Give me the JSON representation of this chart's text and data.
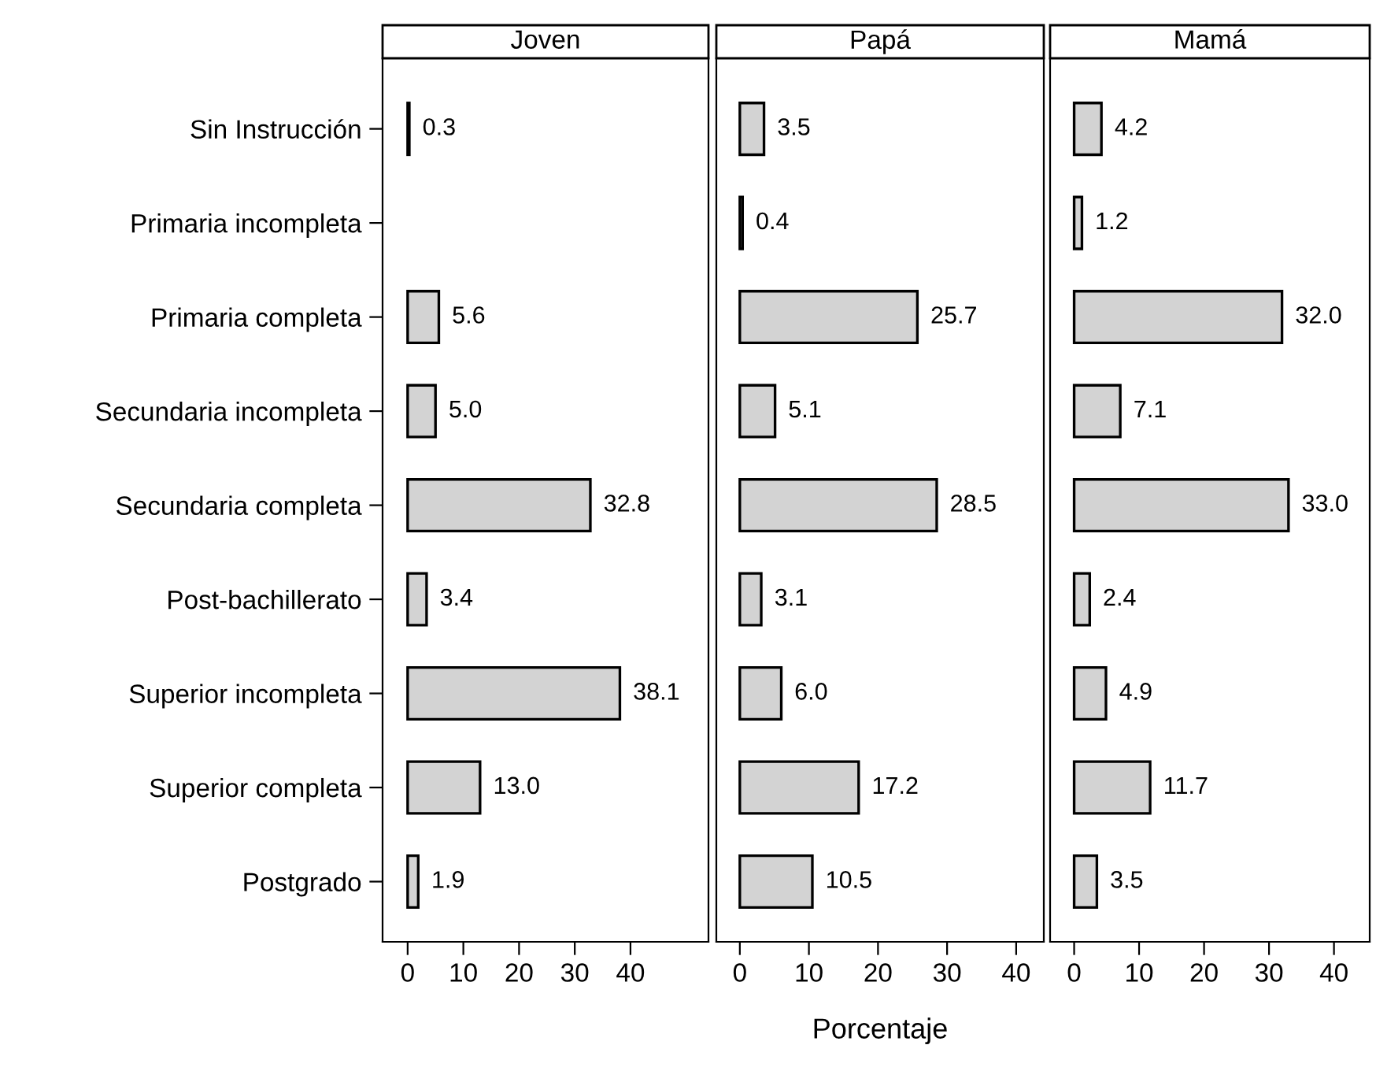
{
  "chart_data": [
    {
      "type": "bar",
      "orientation": "horizontal",
      "title": "Joven",
      "categories": [
        "Sin Instrucción",
        "Primaria incompleta",
        "Primaria completa",
        "Secundaria incompleta",
        "Secundaria completa",
        "Post-bachillerato",
        "Superior incompleta",
        "Superior completa",
        "Postgrado"
      ],
      "values": [
        0.3,
        null,
        5.6,
        5.0,
        32.8,
        3.4,
        38.1,
        13.0,
        1.9
      ],
      "value_labels": [
        "0.3",
        null,
        "5.6",
        "5.0",
        "32.8",
        "3.4",
        "38.1",
        "13.0",
        "1.9"
      ],
      "color": "#d3d3d3",
      "xlim": [
        -4.5,
        54
      ],
      "xticks": [
        0,
        10,
        20,
        30,
        40
      ],
      "grid": false
    },
    {
      "type": "bar",
      "orientation": "horizontal",
      "title": "Papá",
      "xlabel": "Porcentaje",
      "values": [
        3.5,
        0.4,
        25.7,
        5.1,
        28.5,
        3.1,
        6.0,
        17.2,
        10.5
      ],
      "value_labels": [
        "3.5",
        "0.4",
        "25.7",
        "5.1",
        "28.5",
        "3.1",
        "6.0",
        "17.2",
        "10.5"
      ],
      "color": "#d3d3d3",
      "xlim": [
        -3.4,
        44
      ],
      "xticks": [
        0,
        10,
        20,
        30,
        40
      ],
      "grid": false,
      "tick_labels": "x"
    },
    {
      "type": "bar",
      "orientation": "horizontal",
      "title": "Mamá",
      "values": [
        4.2,
        1.2,
        32.0,
        7.1,
        33.0,
        2.4,
        4.9,
        11.7,
        3.5
      ],
      "value_labels": [
        "4.2",
        "1.2",
        "32.0",
        "7.1",
        "33.0",
        "2.4",
        "4.9",
        "11.7",
        "3.5"
      ],
      "color": "#d3d3d3",
      "xlim": [
        -3.7,
        45.5
      ],
      "xticks": [
        0,
        10,
        20,
        30,
        40
      ],
      "grid": false,
      "tick_labels": "x"
    }
  ]
}
